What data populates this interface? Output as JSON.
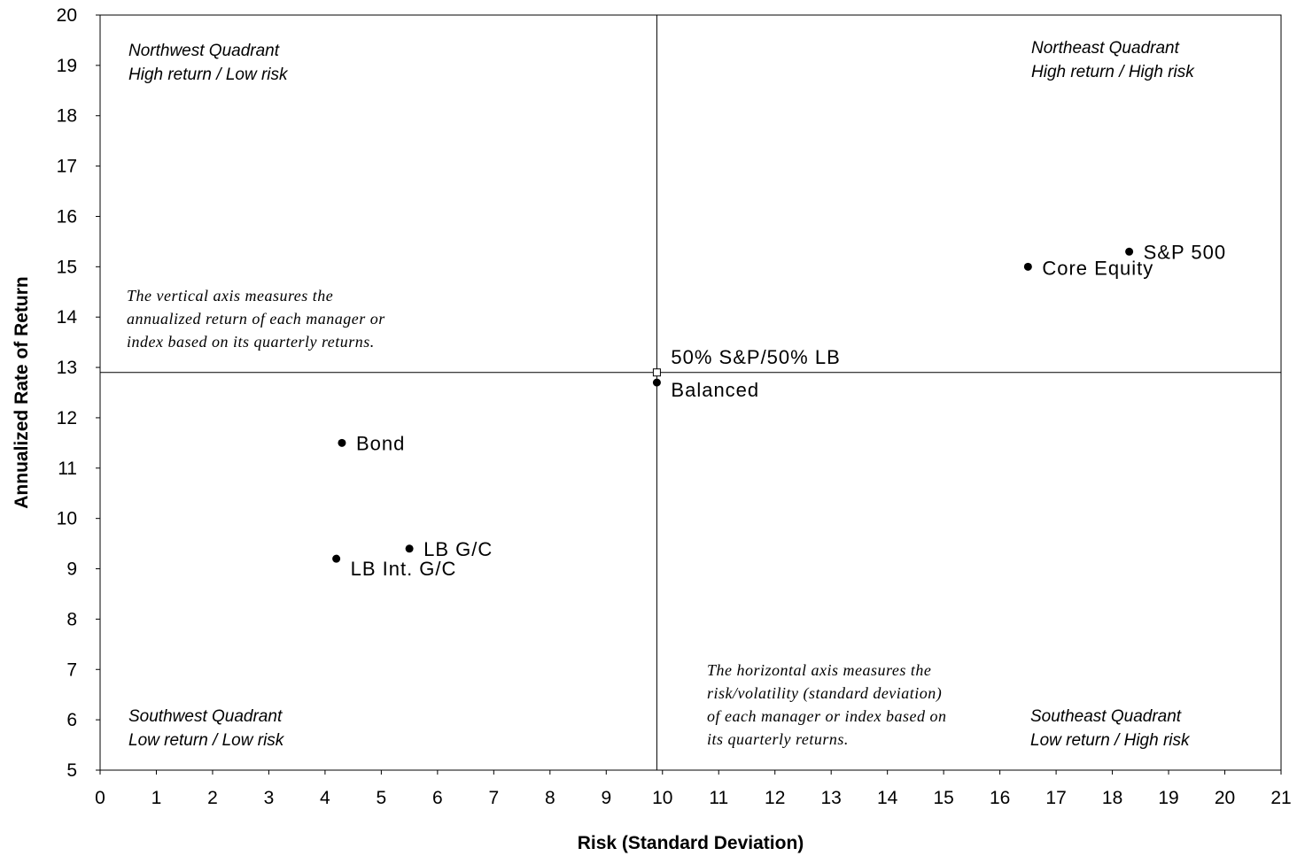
{
  "chart_data": {
    "type": "scatter",
    "xlabel": "Risk (Standard Deviation)",
    "ylabel": "Annualized Rate of Return",
    "xlim": [
      0,
      21
    ],
    "ylim": [
      5,
      20
    ],
    "xticks": [
      "0",
      "1",
      "2",
      "3",
      "4",
      "5",
      "6",
      "7",
      "8",
      "9",
      "10",
      "11",
      "12",
      "13",
      "14",
      "15",
      "16",
      "17",
      "18",
      "19",
      "20",
      "21"
    ],
    "yticks": [
      "5",
      "6",
      "7",
      "8",
      "9",
      "10",
      "11",
      "12",
      "13",
      "14",
      "15",
      "16",
      "17",
      "18",
      "19",
      "20"
    ],
    "grid": false,
    "crosshair": {
      "x": 9.9,
      "y": 12.9
    },
    "points": [
      {
        "label": "S&P 500",
        "x": 18.3,
        "y": 15.3,
        "marker": "dot"
      },
      {
        "label": "Core Equity",
        "x": 16.5,
        "y": 15.0,
        "marker": "dot"
      },
      {
        "label": "50% S&P/50% LB",
        "x": 9.9,
        "y": 12.9,
        "marker": "square"
      },
      {
        "label": "Balanced",
        "x": 9.9,
        "y": 12.7,
        "marker": "dot"
      },
      {
        "label": "Bond",
        "x": 4.3,
        "y": 11.5,
        "marker": "dot"
      },
      {
        "label": "LB G/C",
        "x": 5.5,
        "y": 9.4,
        "marker": "dot"
      },
      {
        "label": "LB Int. G/C",
        "x": 4.2,
        "y": 9.2,
        "marker": "dot"
      }
    ],
    "quadrants": {
      "northwest": [
        "Northwest Quadrant",
        "High return / Low risk"
      ],
      "northeast": [
        "Northeast Quadrant",
        "High return / High risk"
      ],
      "southwest": [
        "Southwest Quadrant",
        "Low return / Low risk"
      ],
      "southeast": [
        "Southeast Quadrant",
        "Low return / High risk"
      ]
    },
    "annotations": {
      "vertical_note": [
        "The vertical axis measures the",
        "annualized return of each  manager or",
        "index based on its quarterly returns."
      ],
      "horizontal_note": [
        "The horizontal axis measures the",
        "risk/volatility (standard deviation)",
        "of each manager or index based on",
        "its quarterly returns."
      ]
    }
  }
}
